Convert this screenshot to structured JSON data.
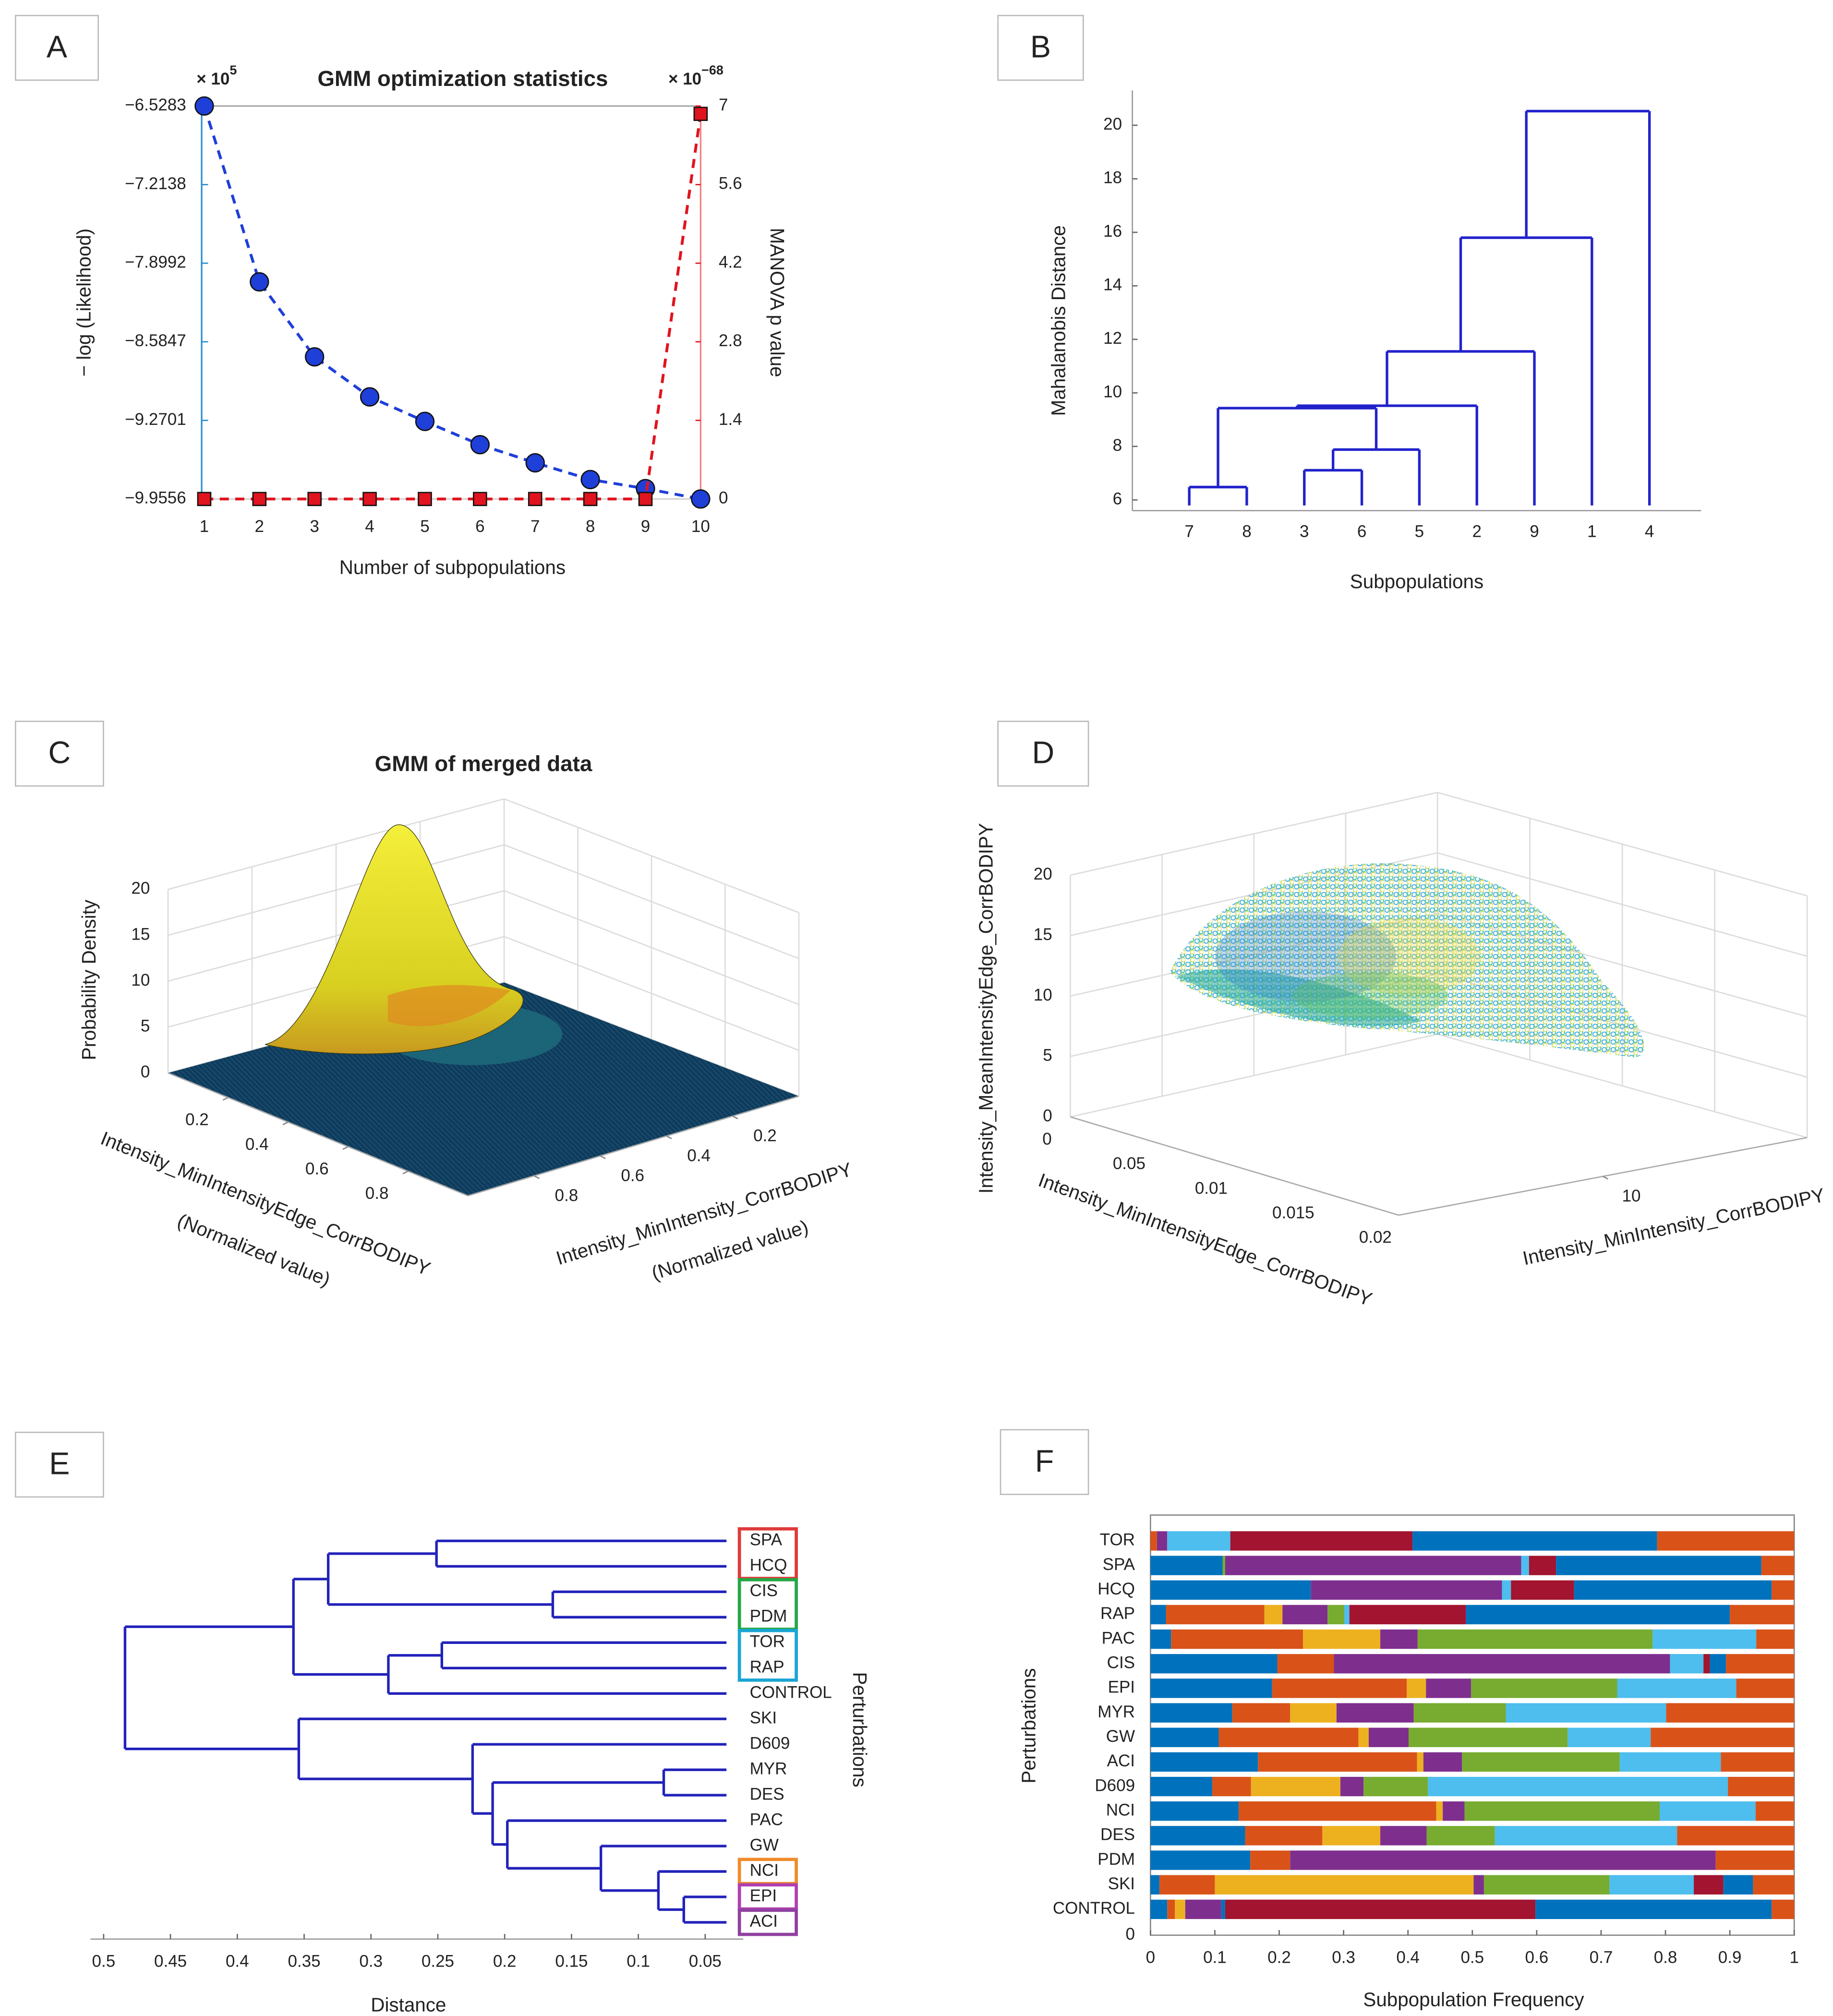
{
  "chart_data": [
    {
      "panel": "A",
      "type": "line",
      "title": "GMM optimization statistics",
      "x_label": "Number of subpopulations",
      "y_label": "− log (Likelihood)",
      "y2_label": "MANOVA p value",
      "y_multiplier": "× 10",
      "y_multiplier_exp": "5",
      "y2_multiplier": "× 10",
      "y2_multiplier_exp": "−68",
      "x": [
        1,
        2,
        3,
        4,
        5,
        6,
        7,
        8,
        9,
        10
      ],
      "xlim": [
        1,
        10
      ],
      "xticks": [
        1,
        2,
        3,
        4,
        5,
        6,
        7,
        8,
        9,
        10
      ],
      "ylim": [
        -9.9556,
        -6.5283
      ],
      "yticks": [
        {
          "value": -6.5283,
          "label": "−6.5283"
        },
        {
          "value": -7.2138,
          "label": "−7.2138"
        },
        {
          "value": -7.8992,
          "label": "−7.8992"
        },
        {
          "value": -8.5847,
          "label": "−8.5847"
        },
        {
          "value": -9.2701,
          "label": "−9.2701"
        },
        {
          "value": -9.9556,
          "label": "−9.9556"
        }
      ],
      "y2lim": [
        0,
        7
      ],
      "y2ticks": [
        0,
        1.4,
        2.8,
        4.2,
        5.6,
        7
      ],
      "series": [
        {
          "color": "#1f3fd9",
          "values": [
            -6.5283,
            -8.062,
            -8.716,
            -9.065,
            -9.279,
            -9.482,
            -9.64,
            -9.786,
            -9.865,
            -9.9556
          ]
        },
        {
          "color": "#e0141e",
          "axis": "y2",
          "values": [
            0,
            0,
            0,
            0,
            0,
            0,
            0,
            0,
            0,
            6.86
          ]
        }
      ]
    },
    {
      "panel": "B",
      "type": "dendrogram",
      "orientation": "vertical",
      "x_label": "Subpopulations",
      "y_label": "Mahalanobis Distance",
      "leaves": [
        "7",
        "8",
        "3",
        "6",
        "5",
        "2",
        "9",
        "1",
        "4"
      ],
      "merges": [
        [
          0,
          1,
          6.48
        ],
        [
          2,
          3,
          7.11
        ],
        [
          10,
          4,
          7.88
        ],
        [
          9,
          11,
          9.43
        ],
        [
          12,
          5,
          9.52
        ],
        [
          13,
          6,
          11.55
        ],
        [
          14,
          7,
          15.8
        ],
        [
          15,
          8,
          20.53
        ]
      ],
      "ylim": [
        5.6,
        21.3
      ],
      "yticks": [
        6,
        8,
        10,
        12,
        14,
        16,
        18,
        20
      ],
      "color": "#2222cc"
    },
    {
      "panel": "C",
      "type": "surface",
      "title": "GMM of merged data",
      "x_label": "Intensity_MinIntensityEdge_CorrBODIPY",
      "x_sublabel": "(Normalized value)",
      "y_label": "Intensity_MinIntensity_CorrBODIPY",
      "y_sublabel": "(Normalized value)",
      "z_label": "Probability Density",
      "xlim": [
        0,
        1
      ],
      "xticks": [
        0.2,
        0.4,
        0.6,
        0.8
      ],
      "ylim": [
        0,
        1
      ],
      "yticks": [
        0.2,
        0.4,
        0.6,
        0.8
      ],
      "zlim": [
        0,
        20
      ],
      "zticks": [
        0,
        5,
        10,
        15,
        20
      ]
    },
    {
      "panel": "D",
      "type": "scatter3d",
      "x_label": "Intensity_MinIntensityEdge_CorrBODIPY",
      "y_label": "Intensity_MinIntensity_CorrBODIPY",
      "z_label": "Intensity_MeanIntensityEdge_CorrBODIPY",
      "xtick_labels": [
        "0",
        "0.05",
        "0.01",
        "0.015",
        "0.02"
      ],
      "ylim": [
        0,
        20
      ],
      "yticks": [
        10
      ],
      "zlim": [
        0,
        20
      ],
      "zticks": [
        0,
        5,
        10,
        15,
        20
      ]
    },
    {
      "panel": "E",
      "type": "dendrogram",
      "orientation": "horizontal",
      "x_label": "Distance",
      "y_label": "Perturbations",
      "leaves": [
        "SPA",
        "HCQ",
        "CIS",
        "PDM",
        "TOR",
        "RAP",
        "CONTROL",
        "SKI",
        "D609",
        "MYR",
        "DES",
        "PAC",
        "GW",
        "NCI",
        "EPI",
        "ACI"
      ],
      "merges": [
        [
          0,
          1,
          0.251
        ],
        [
          2,
          3,
          0.164
        ],
        [
          16,
          17,
          0.332
        ],
        [
          4,
          5,
          0.247
        ],
        [
          19,
          6,
          0.287
        ],
        [
          18,
          20,
          0.358
        ],
        [
          9,
          10,
          0.081
        ],
        [
          14,
          15,
          0.066
        ],
        [
          13,
          23,
          0.085
        ],
        [
          12,
          24,
          0.128
        ],
        [
          11,
          25,
          0.198
        ],
        [
          22,
          26,
          0.209
        ],
        [
          8,
          27,
          0.224
        ],
        [
          7,
          28,
          0.354
        ],
        [
          21,
          29,
          0.484
        ]
      ],
      "xlim": [
        0.505,
        0.036
      ],
      "xticks": [
        0.5,
        0.45,
        0.4,
        0.35,
        0.3,
        0.25,
        0.2,
        0.15,
        0.1,
        0.05
      ],
      "color": "#2222bb",
      "leaf_boxes": [
        {
          "leaves": [
            0,
            1
          ],
          "color": "#e03a3a"
        },
        {
          "leaves": [
            2,
            3
          ],
          "color": "#22a845"
        },
        {
          "leaves": [
            4,
            5
          ],
          "color": "#1aa6d4"
        },
        {
          "leaves": [
            13
          ],
          "color": "#f08a2a"
        },
        {
          "leaves": [
            14
          ],
          "color": "#b040b0"
        },
        {
          "leaves": [
            15
          ],
          "color": "#9040a0"
        }
      ]
    },
    {
      "panel": "F",
      "type": "stacked_bar",
      "orientation": "horizontal",
      "x_label": "Subpopulation Frequency",
      "y_label": "Perturbations",
      "y_origin_label": "0",
      "categories": [
        "TOR",
        "SPA",
        "HCQ",
        "RAP",
        "PAC",
        "CIS",
        "EPI",
        "MYR",
        "GW",
        "ACI",
        "D609",
        "NCI",
        "DES",
        "PDM",
        "SKI",
        "CONTROL"
      ],
      "values": [
        [
          0.01,
          0.016,
          0.098,
          0.283,
          0.38,
          0.213
        ],
        [
          0.112,
          0.004,
          0.46,
          0.012,
          0.042,
          0.319,
          0.051
        ],
        [
          0.249,
          0.297,
          0.014,
          0.098,
          0.307,
          0.035
        ],
        [
          0.024,
          0.153,
          0.028,
          0.07,
          0.026,
          0.008,
          0.181,
          0.41,
          0.1
        ],
        [
          0.032,
          0.205,
          0.12,
          0.058,
          0.365,
          0.161,
          0.059
        ],
        [
          0.197,
          0.088,
          0.522,
          0.052,
          0.01,
          0.025,
          0.106
        ],
        [
          0.189,
          0.209,
          0.03,
          0.07,
          0.227,
          0.185,
          0.09
        ],
        [
          0.127,
          0.09,
          0.072,
          0.12,
          0.143,
          0.249,
          0.199
        ],
        [
          0.106,
          0.217,
          0.016,
          0.062,
          0.247,
          0.129,
          0.223
        ],
        [
          0.167,
          0.247,
          0.01,
          0.06,
          0.245,
          0.157,
          0.114
        ],
        [
          0.096,
          0.06,
          0.139,
          0.036,
          0.1,
          0.466,
          0.103
        ],
        [
          0.137,
          0.307,
          0.01,
          0.034,
          0.303,
          0.149,
          0.06
        ],
        [
          0.147,
          0.12,
          0.09,
          0.072,
          0.106,
          0.283,
          0.182
        ],
        [
          0.155,
          0.062,
          0.661,
          0.122
        ],
        [
          0.014,
          0.086,
          0.402,
          0.016,
          0.195,
          0.131,
          0.046,
          0.046,
          0.064
        ],
        [
          0.026,
          0.012,
          0.016,
          0.056,
          0.006,
          0.482,
          0.367,
          0.035
        ]
      ],
      "colors": [
        [
          "#d95319",
          "#7e2f8e",
          "#4dbeee",
          "#a2142f",
          "#0072bd",
          "#d95319"
        ],
        [
          "#0072bd",
          "#77ac30",
          "#7e2f8e",
          "#4dbeee",
          "#a2142f",
          "#0072bd",
          "#d95319"
        ],
        [
          "#0072bd",
          "#7e2f8e",
          "#4dbeee",
          "#a2142f",
          "#0072bd",
          "#d95319"
        ],
        [
          "#0072bd",
          "#d95319",
          "#edb120",
          "#7e2f8e",
          "#77ac30",
          "#4dbeee",
          "#a2142f",
          "#0072bd",
          "#d95319"
        ],
        [
          "#0072bd",
          "#d95319",
          "#edb120",
          "#7e2f8e",
          "#77ac30",
          "#4dbeee",
          "#d95319"
        ],
        [
          "#0072bd",
          "#d95319",
          "#7e2f8e",
          "#4dbeee",
          "#a2142f",
          "#0072bd",
          "#d95319"
        ],
        [
          "#0072bd",
          "#d95319",
          "#edb120",
          "#7e2f8e",
          "#77ac30",
          "#4dbeee",
          "#d95319"
        ],
        [
          "#0072bd",
          "#d95319",
          "#edb120",
          "#7e2f8e",
          "#77ac30",
          "#4dbeee",
          "#d95319"
        ],
        [
          "#0072bd",
          "#d95319",
          "#edb120",
          "#7e2f8e",
          "#77ac30",
          "#4dbeee",
          "#d95319"
        ],
        [
          "#0072bd",
          "#d95319",
          "#edb120",
          "#7e2f8e",
          "#77ac30",
          "#4dbeee",
          "#d95319"
        ],
        [
          "#0072bd",
          "#d95319",
          "#edb120",
          "#7e2f8e",
          "#77ac30",
          "#4dbeee",
          "#d95319"
        ],
        [
          "#0072bd",
          "#d95319",
          "#edb120",
          "#7e2f8e",
          "#77ac30",
          "#4dbeee",
          "#d95319"
        ],
        [
          "#0072bd",
          "#d95319",
          "#edb120",
          "#7e2f8e",
          "#77ac30",
          "#4dbeee",
          "#d95319"
        ],
        [
          "#0072bd",
          "#d95319",
          "#7e2f8e",
          "#d95319"
        ],
        [
          "#0072bd",
          "#d95319",
          "#edb120",
          "#7e2f8e",
          "#77ac30",
          "#4dbeee",
          "#a2142f",
          "#0072bd",
          "#d95319"
        ],
        [
          "#0072bd",
          "#d95319",
          "#edb120",
          "#7e2f8e",
          "#0072bd",
          "#a2142f",
          "#0072bd",
          "#d95319"
        ]
      ],
      "xlim": [
        0,
        1
      ],
      "xticks": [
        0,
        0.1,
        0.2,
        0.3,
        0.4,
        0.5,
        0.6,
        0.7,
        0.8,
        0.9,
        1
      ]
    }
  ]
}
